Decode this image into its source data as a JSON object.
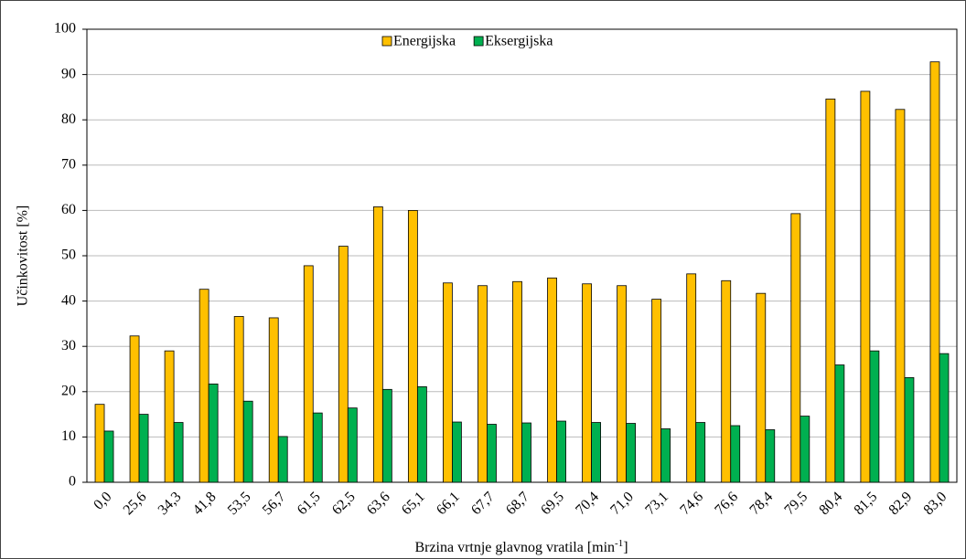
{
  "chart_data": {
    "type": "bar",
    "x_label": {
      "text": "Brzina vrtnje glavnog vratila [min",
      "sup": "-1",
      "end": "]"
    },
    "y_label": "Učinkovitost [%]",
    "categories": [
      "0,0",
      "25,6",
      "34,3",
      "41,8",
      "53,5",
      "56,7",
      "61,5",
      "62,5",
      "63,6",
      "65,1",
      "66,1",
      "67,7",
      "68,7",
      "69,5",
      "70,4",
      "71,0",
      "73,1",
      "74,6",
      "76,6",
      "78,4",
      "79,5",
      "80,4",
      "81,5",
      "82,9",
      "83,0"
    ],
    "series": [
      {
        "name": "Energijska",
        "color": "#ffc000",
        "values": [
          17.2,
          32.3,
          29.0,
          42.6,
          36.6,
          36.3,
          47.8,
          52.1,
          60.8,
          60.0,
          44.0,
          43.4,
          44.3,
          45.1,
          43.8,
          43.4,
          40.4,
          46.0,
          44.5,
          41.7,
          59.3,
          84.6,
          86.3,
          82.3,
          92.8
        ]
      },
      {
        "name": "Eksergijska",
        "color": "#00b050",
        "values": [
          11.3,
          15.0,
          13.2,
          21.7,
          17.9,
          10.1,
          15.3,
          16.4,
          20.5,
          21.1,
          13.3,
          12.8,
          13.1,
          13.5,
          13.2,
          13.0,
          11.8,
          13.2,
          12.5,
          11.6,
          14.6,
          25.9,
          29.0,
          23.1,
          28.4
        ]
      }
    ],
    "ylim": [
      0,
      100
    ],
    "yticks": [
      0,
      10,
      20,
      30,
      40,
      50,
      60,
      70,
      80,
      90,
      100
    ],
    "grid": true,
    "legend": "top"
  }
}
